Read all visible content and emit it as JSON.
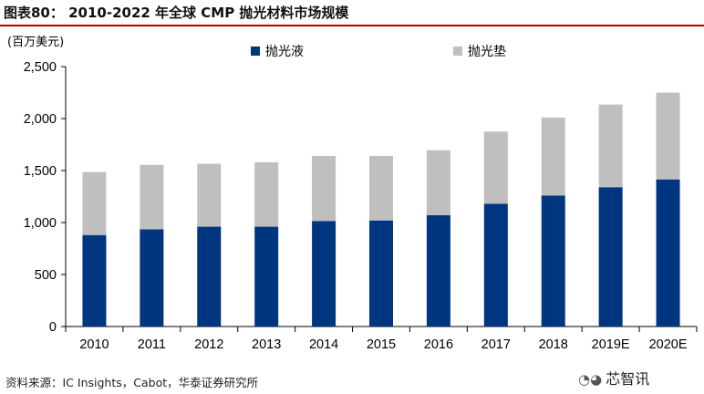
{
  "header": {
    "title": "图表80：  2010-2022 年全球 CMP 抛光材料市场规模"
  },
  "footer": {
    "source": "资料来源：IC Insights，Cabot，华泰证券研究所",
    "watermark": "芯智讯",
    "watermark_icon": "wechat-icon"
  },
  "chart_data": {
    "type": "bar",
    "stacked": true,
    "unit_label": "(百万美元)",
    "categories": [
      "2010",
      "2011",
      "2012",
      "2013",
      "2014",
      "2015",
      "2016",
      "2017",
      "2018",
      "2019E",
      "2020E"
    ],
    "series": [
      {
        "name": "抛光液",
        "color": "#003580",
        "values": [
          880,
          935,
          960,
          960,
          1015,
          1020,
          1070,
          1180,
          1260,
          1340,
          1415
        ]
      },
      {
        "name": "抛光垫",
        "color": "#bfbfbf",
        "values": [
          605,
          620,
          605,
          620,
          625,
          620,
          625,
          695,
          750,
          795,
          835
        ]
      }
    ],
    "ylim": [
      0,
      2500
    ],
    "yticks": [
      "0",
      "500",
      "1,000",
      "1,500",
      "2,000",
      "2,500"
    ],
    "ytick_values": [
      0,
      500,
      1000,
      1500,
      2000,
      2500
    ],
    "legend_position": "top",
    "grid": false
  }
}
